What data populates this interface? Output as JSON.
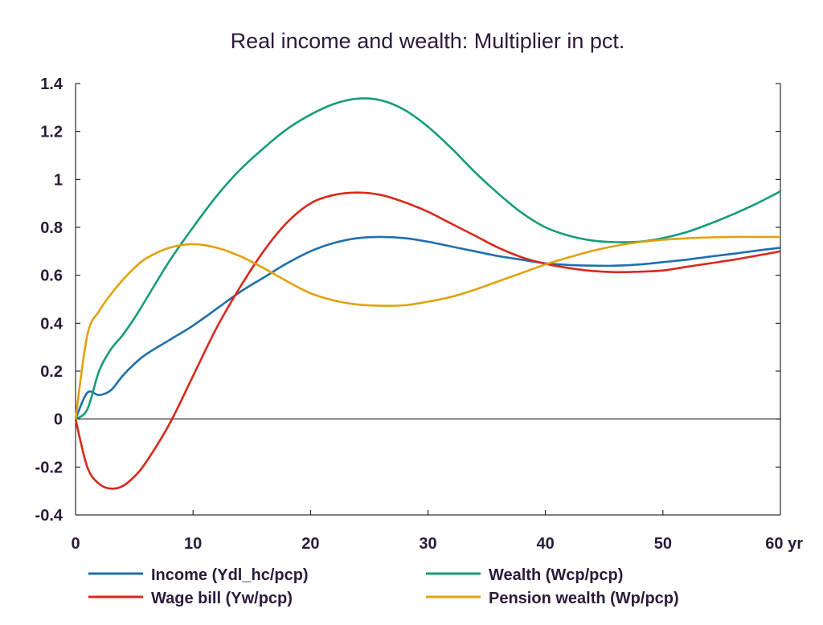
{
  "chart_data": {
    "type": "line",
    "title": "Real income and wealth: Multiplier in pct.",
    "xlabel": "",
    "ylabel": "",
    "x_unit_label": "yr",
    "xlim": [
      0,
      60
    ],
    "ylim": [
      -0.4,
      1.4
    ],
    "x_ticks": [
      0,
      10,
      20,
      30,
      40,
      50,
      60
    ],
    "x_tick_labels": [
      "0",
      "10",
      "20",
      "30",
      "40",
      "50",
      "60 yr"
    ],
    "y_ticks": [
      -0.4,
      -0.2,
      0,
      0.2,
      0.4,
      0.6,
      0.8,
      1,
      1.2,
      1.4
    ],
    "y_tick_labels": [
      "-0.4",
      "-0.2",
      "0",
      "0.2",
      "0.4",
      "0.6",
      "0.8",
      "1",
      "1.2",
      "1.4"
    ],
    "grid": false,
    "legend_position": "bottom",
    "x": [
      0,
      1,
      2,
      3,
      4,
      5,
      6,
      8,
      10,
      12,
      14,
      16,
      18,
      20,
      22,
      24,
      26,
      28,
      30,
      32,
      34,
      36,
      38,
      40,
      42,
      44,
      46,
      48,
      50,
      52,
      54,
      56,
      58,
      60
    ],
    "series": [
      {
        "name": "Income (Ydl_hc/pcp)",
        "color": "#1f6fad",
        "values": [
          0,
          0.11,
          0.1,
          0.12,
          0.18,
          0.23,
          0.27,
          0.33,
          0.39,
          0.46,
          0.53,
          0.59,
          0.65,
          0.7,
          0.735,
          0.755,
          0.76,
          0.755,
          0.74,
          0.72,
          0.7,
          0.68,
          0.665,
          0.65,
          0.643,
          0.64,
          0.64,
          0.645,
          0.655,
          0.665,
          0.678,
          0.69,
          0.703,
          0.715
        ]
      },
      {
        "name": "Wage bill (Yw/pcp)",
        "color": "#d9291c",
        "values": [
          0,
          -0.2,
          -0.27,
          -0.29,
          -0.28,
          -0.24,
          -0.18,
          -0.02,
          0.18,
          0.38,
          0.55,
          0.7,
          0.82,
          0.9,
          0.935,
          0.945,
          0.935,
          0.905,
          0.865,
          0.815,
          0.765,
          0.715,
          0.675,
          0.648,
          0.63,
          0.618,
          0.613,
          0.615,
          0.62,
          0.635,
          0.65,
          0.665,
          0.682,
          0.7
        ]
      },
      {
        "name": "Wealth (Wcp/pcp)",
        "color": "#169c7a",
        "values": [
          0,
          0.04,
          0.2,
          0.29,
          0.35,
          0.42,
          0.5,
          0.66,
          0.8,
          0.93,
          1.04,
          1.13,
          1.21,
          1.27,
          1.315,
          1.337,
          1.33,
          1.29,
          1.22,
          1.13,
          1.03,
          0.94,
          0.86,
          0.8,
          0.765,
          0.745,
          0.738,
          0.74,
          0.755,
          0.78,
          0.815,
          0.855,
          0.9,
          0.95
        ]
      },
      {
        "name": "Pension wealth (Wp/pcp)",
        "color": "#e2a20e",
        "values": [
          0,
          0.35,
          0.45,
          0.52,
          0.58,
          0.63,
          0.67,
          0.715,
          0.73,
          0.715,
          0.68,
          0.63,
          0.575,
          0.525,
          0.495,
          0.478,
          0.473,
          0.475,
          0.49,
          0.51,
          0.54,
          0.575,
          0.61,
          0.645,
          0.675,
          0.702,
          0.723,
          0.738,
          0.748,
          0.754,
          0.758,
          0.76,
          0.76,
          0.76
        ]
      }
    ],
    "legend_order": [
      0,
      2,
      1,
      3
    ]
  }
}
